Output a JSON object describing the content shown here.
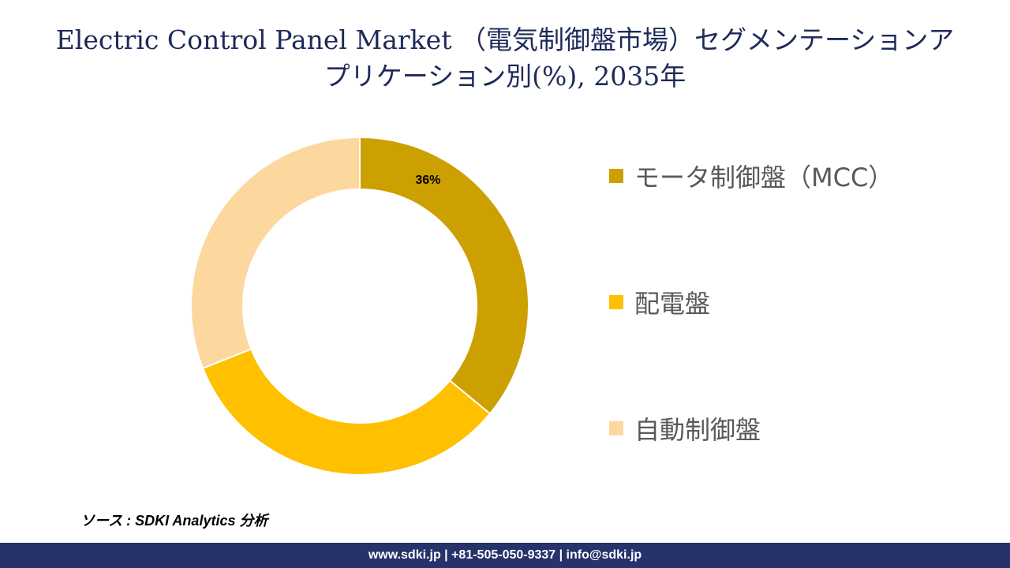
{
  "title": {
    "line1": "Electric Control Panel Market （電気制御盤市場）セグメンテーションア",
    "line2": "プリケーション別(%), 2035年"
  },
  "chart_data": {
    "type": "pie",
    "donut": true,
    "categories": [
      "モータ制御盤（MCC）",
      "配電盤",
      "自動制御盤"
    ],
    "values": [
      36,
      33,
      31
    ],
    "data_labels": [
      "36%",
      "",
      ""
    ],
    "colors": [
      "#CCA000",
      "#FFC000",
      "#FCD89F"
    ],
    "legend_position": "right"
  },
  "source": "ソース : SDKI Analytics 分析",
  "footer": "www.sdki.jp | +81-505-050-9337 | info@sdki.jp"
}
